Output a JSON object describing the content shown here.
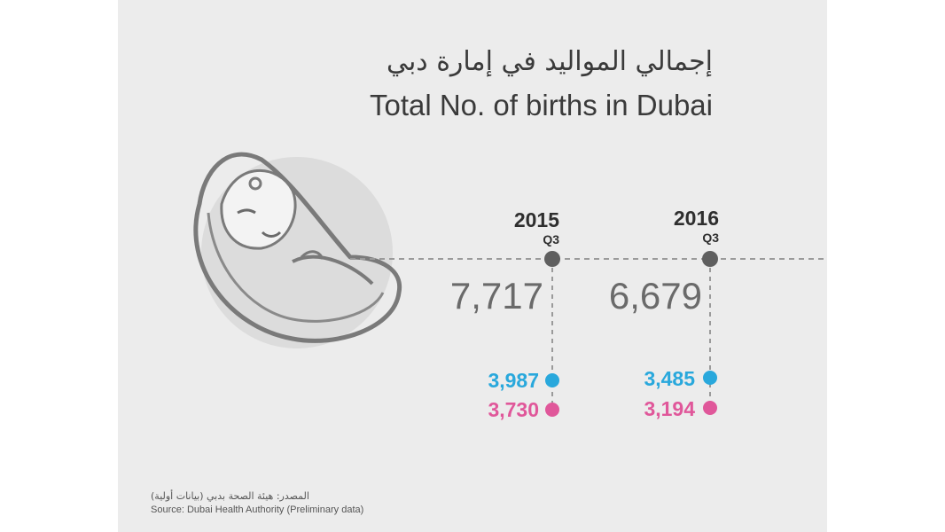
{
  "title_ar": "إجمالي المواليد في إمارة دبي",
  "title_en": "Total No. of births in Dubai",
  "chart_data": {
    "type": "table",
    "title": "Total No. of births in Dubai",
    "categories": [
      "2015 Q3",
      "2016 Q3"
    ],
    "periods": [
      {
        "year": "2015",
        "quarter": "Q3",
        "total": "7,717",
        "boys": "3,987",
        "girls": "3,730"
      },
      {
        "year": "2016",
        "quarter": "Q3",
        "total": "6,679",
        "boys": "3,485",
        "girls": "3,194"
      }
    ],
    "series": [
      {
        "name": "",
        "values": [
          7717,
          6679
        ]
      },
      {
        "name": "",
        "values": [
          3987,
          3485
        ]
      },
      {
        "name": "",
        "values": [
          3730,
          3194
        ]
      }
    ]
  },
  "colors": {
    "boys": "#29a8dc",
    "girls": "#e0579a",
    "timeline": "#9a9a9a",
    "node": "#5f5f5f"
  },
  "icons": [
    "baby-illustration"
  ],
  "source_ar": "المصدر: هيئة الصحة بدبي (بيانات أولية)",
  "source_en": "Source: Dubai Health Authority (Preliminary data)"
}
